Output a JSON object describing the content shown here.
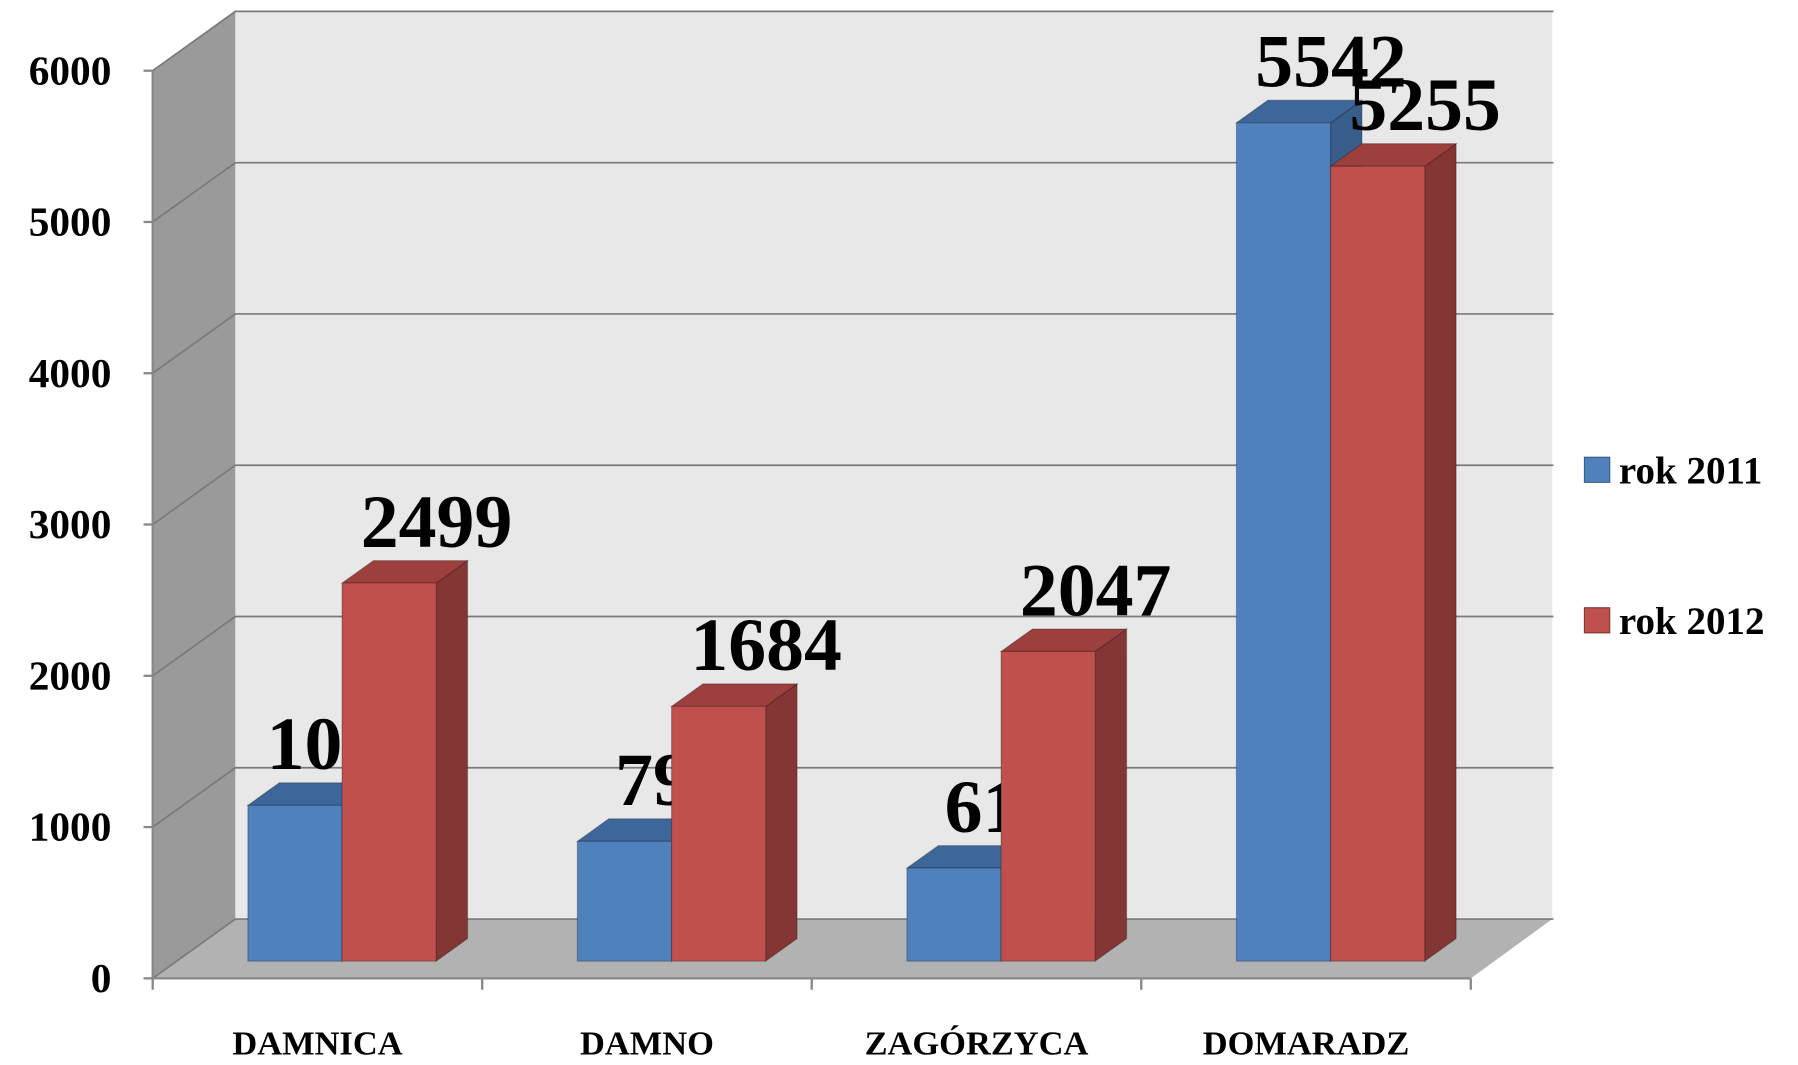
{
  "chart_data": {
    "type": "bar3d",
    "categories": [
      "DAMNICA",
      "DAMNO",
      "ZAGÓRZYCA",
      "DOMARADZ"
    ],
    "series": [
      {
        "name": "rok 2011",
        "color": "#4f81bd",
        "side": "#385d8a",
        "top": "#3d679b",
        "values": [
          1030,
          792,
          615,
          5542
        ]
      },
      {
        "name": "rok 2012",
        "color": "#c0504d",
        "side": "#843634",
        "top": "#9c3f3d",
        "values": [
          2499,
          1684,
          2047,
          5255
        ]
      }
    ],
    "ylim": [
      0,
      6000
    ],
    "yticks": [
      0,
      1000,
      2000,
      3000,
      4000,
      5000,
      6000
    ],
    "grid": true,
    "legend": "right"
  }
}
